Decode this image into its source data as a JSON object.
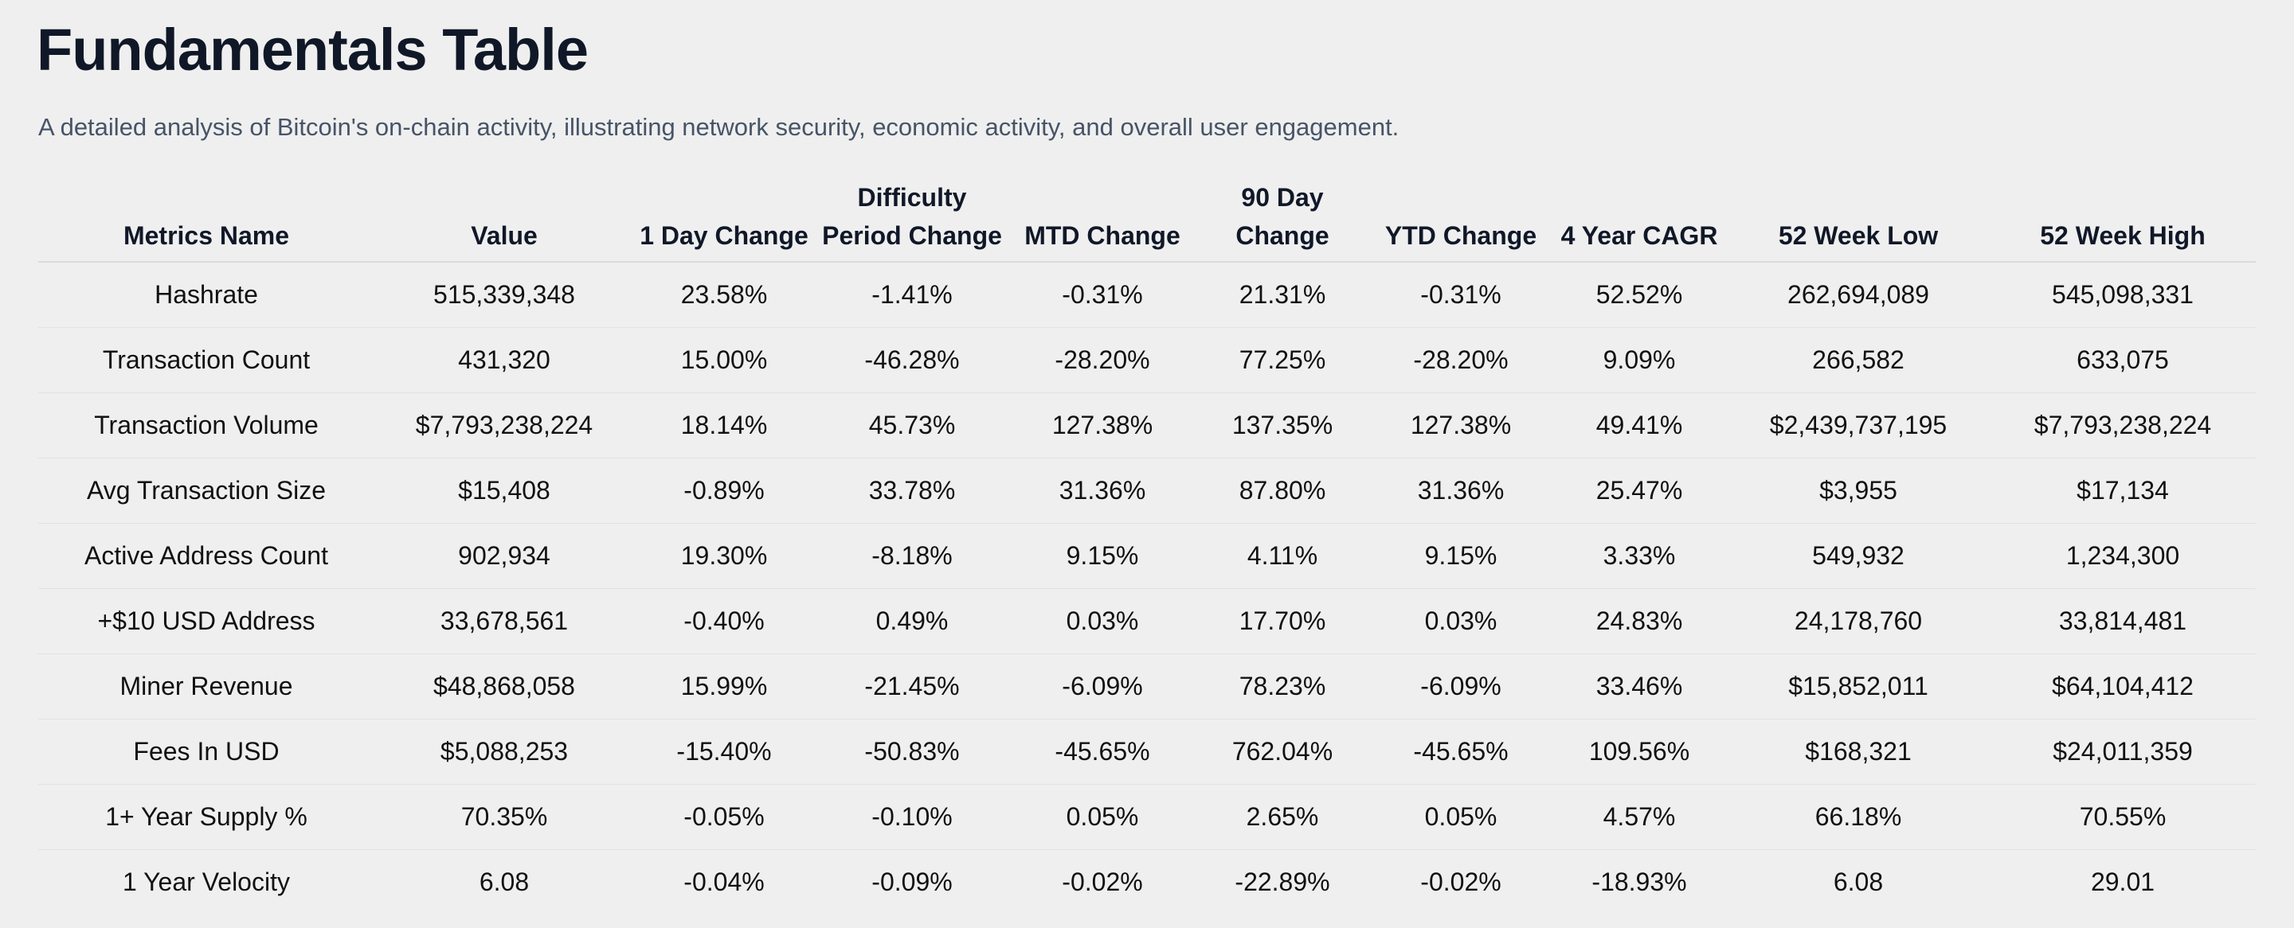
{
  "header": {
    "title": "Fundamentals Table",
    "subtitle": "A detailed analysis of Bitcoin's on-chain activity, illustrating network security, economic activity, and overall user engagement."
  },
  "colors": {
    "positive": "#0a7a0a",
    "negative": "#e00000"
  },
  "table": {
    "columns": [
      "Metrics Name",
      "Value",
      "1 Day Change",
      "Difficulty Period Change",
      "MTD Change",
      "90 Day Change",
      "YTD Change",
      "4 Year CAGR",
      "52 Week Low",
      "52 Week High"
    ],
    "rows": [
      [
        "Hashrate",
        "515,339,348",
        "23.58%",
        "-1.41%",
        "-0.31%",
        "21.31%",
        "-0.31%",
        "52.52%",
        "262,694,089",
        "545,098,331"
      ],
      [
        "Transaction Count",
        "431,320",
        "15.00%",
        "-46.28%",
        "-28.20%",
        "77.25%",
        "-28.20%",
        "9.09%",
        "266,582",
        "633,075"
      ],
      [
        "Transaction Volume",
        "$7,793,238,224",
        "18.14%",
        "45.73%",
        "127.38%",
        "137.35%",
        "127.38%",
        "49.41%",
        "$2,439,737,195",
        "$7,793,238,224"
      ],
      [
        "Avg Transaction Size",
        "$15,408",
        "-0.89%",
        "33.78%",
        "31.36%",
        "87.80%",
        "31.36%",
        "25.47%",
        "$3,955",
        "$17,134"
      ],
      [
        "Active Address Count",
        "902,934",
        "19.30%",
        "-8.18%",
        "9.15%",
        "4.11%",
        "9.15%",
        "3.33%",
        "549,932",
        "1,234,300"
      ],
      [
        "+$10 USD Address",
        "33,678,561",
        "-0.40%",
        "0.49%",
        "0.03%",
        "17.70%",
        "0.03%",
        "24.83%",
        "24,178,760",
        "33,814,481"
      ],
      [
        "Miner Revenue",
        "$48,868,058",
        "15.99%",
        "-21.45%",
        "-6.09%",
        "78.23%",
        "-6.09%",
        "33.46%",
        "$15,852,011",
        "$64,104,412"
      ],
      [
        "Fees In USD",
        "$5,088,253",
        "-15.40%",
        "-50.83%",
        "-45.65%",
        "762.04%",
        "-45.65%",
        "109.56%",
        "$168,321",
        "$24,011,359"
      ],
      [
        "1+ Year Supply %",
        "70.35%",
        "-0.05%",
        "-0.10%",
        "0.05%",
        "2.65%",
        "0.05%",
        "4.57%",
        "66.18%",
        "70.55%"
      ],
      [
        "1 Year Velocity",
        "6.08",
        "-0.04%",
        "-0.09%",
        "-0.02%",
        "-22.89%",
        "-0.02%",
        "-18.93%",
        "6.08",
        "29.01"
      ]
    ]
  }
}
